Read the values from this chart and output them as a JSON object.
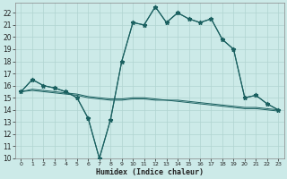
{
  "title": "",
  "xlabel": "Humidex (Indice chaleur)",
  "bg_color": "#cceae8",
  "grid_color": "#b0d4d0",
  "line_color": "#1a6060",
  "xlim": [
    -0.5,
    23.5
  ],
  "ylim": [
    10,
    22.8
  ],
  "xticks": [
    0,
    1,
    2,
    3,
    4,
    5,
    6,
    7,
    8,
    9,
    10,
    11,
    12,
    13,
    14,
    15,
    16,
    17,
    18,
    19,
    20,
    21,
    22,
    23
  ],
  "yticks": [
    10,
    11,
    12,
    13,
    14,
    15,
    16,
    17,
    18,
    19,
    20,
    21,
    22
  ],
  "main_x": [
    0,
    1,
    2,
    3,
    4,
    5,
    6,
    7,
    8,
    9,
    10,
    11,
    12,
    13,
    14,
    15,
    16,
    17,
    18,
    19,
    20,
    21,
    22,
    23
  ],
  "main_y": [
    15.5,
    16.5,
    16.0,
    15.8,
    15.5,
    15.0,
    13.3,
    10.0,
    13.2,
    18.0,
    21.2,
    21.0,
    22.5,
    21.2,
    22.0,
    21.5,
    21.2,
    21.5,
    19.8,
    19.0,
    15.0,
    15.2,
    14.5,
    14.0
  ],
  "flat1_x": [
    0,
    1,
    2,
    3,
    4,
    5,
    6,
    7,
    8,
    9,
    10,
    11,
    12,
    13,
    14,
    15,
    16,
    17,
    18,
    19,
    20,
    21,
    22,
    23
  ],
  "flat1_y": [
    15.5,
    15.7,
    15.6,
    15.5,
    15.4,
    15.3,
    15.1,
    15.0,
    14.9,
    14.9,
    15.0,
    15.0,
    14.9,
    14.8,
    14.8,
    14.7,
    14.6,
    14.5,
    14.4,
    14.3,
    14.2,
    14.2,
    14.1,
    14.0
  ],
  "flat2_x": [
    0,
    1,
    2,
    3,
    4,
    5,
    6,
    7,
    8,
    9,
    10,
    11,
    12,
    13,
    14,
    15,
    16,
    17,
    18,
    19,
    20,
    21,
    22,
    23
  ],
  "flat2_y": [
    15.5,
    15.6,
    15.5,
    15.4,
    15.3,
    15.2,
    15.0,
    14.9,
    14.8,
    14.8,
    14.9,
    14.9,
    14.8,
    14.8,
    14.7,
    14.6,
    14.5,
    14.4,
    14.3,
    14.2,
    14.1,
    14.1,
    14.0,
    13.9
  ],
  "zigzag_x": [
    0,
    1,
    2,
    3,
    4,
    5,
    6,
    7,
    8,
    9,
    10,
    11,
    12,
    13,
    14,
    15,
    16,
    17,
    18,
    19,
    20,
    21,
    22,
    23
  ],
  "zigzag_y": [
    15.5,
    16.5,
    16.0,
    15.8,
    15.5,
    15.0,
    13.3,
    10.0,
    13.2,
    18.0,
    21.2,
    21.0,
    22.5,
    21.2,
    22.0,
    21.5,
    21.2,
    21.5,
    19.8,
    19.0,
    15.0,
    15.2,
    14.5,
    14.0
  ]
}
